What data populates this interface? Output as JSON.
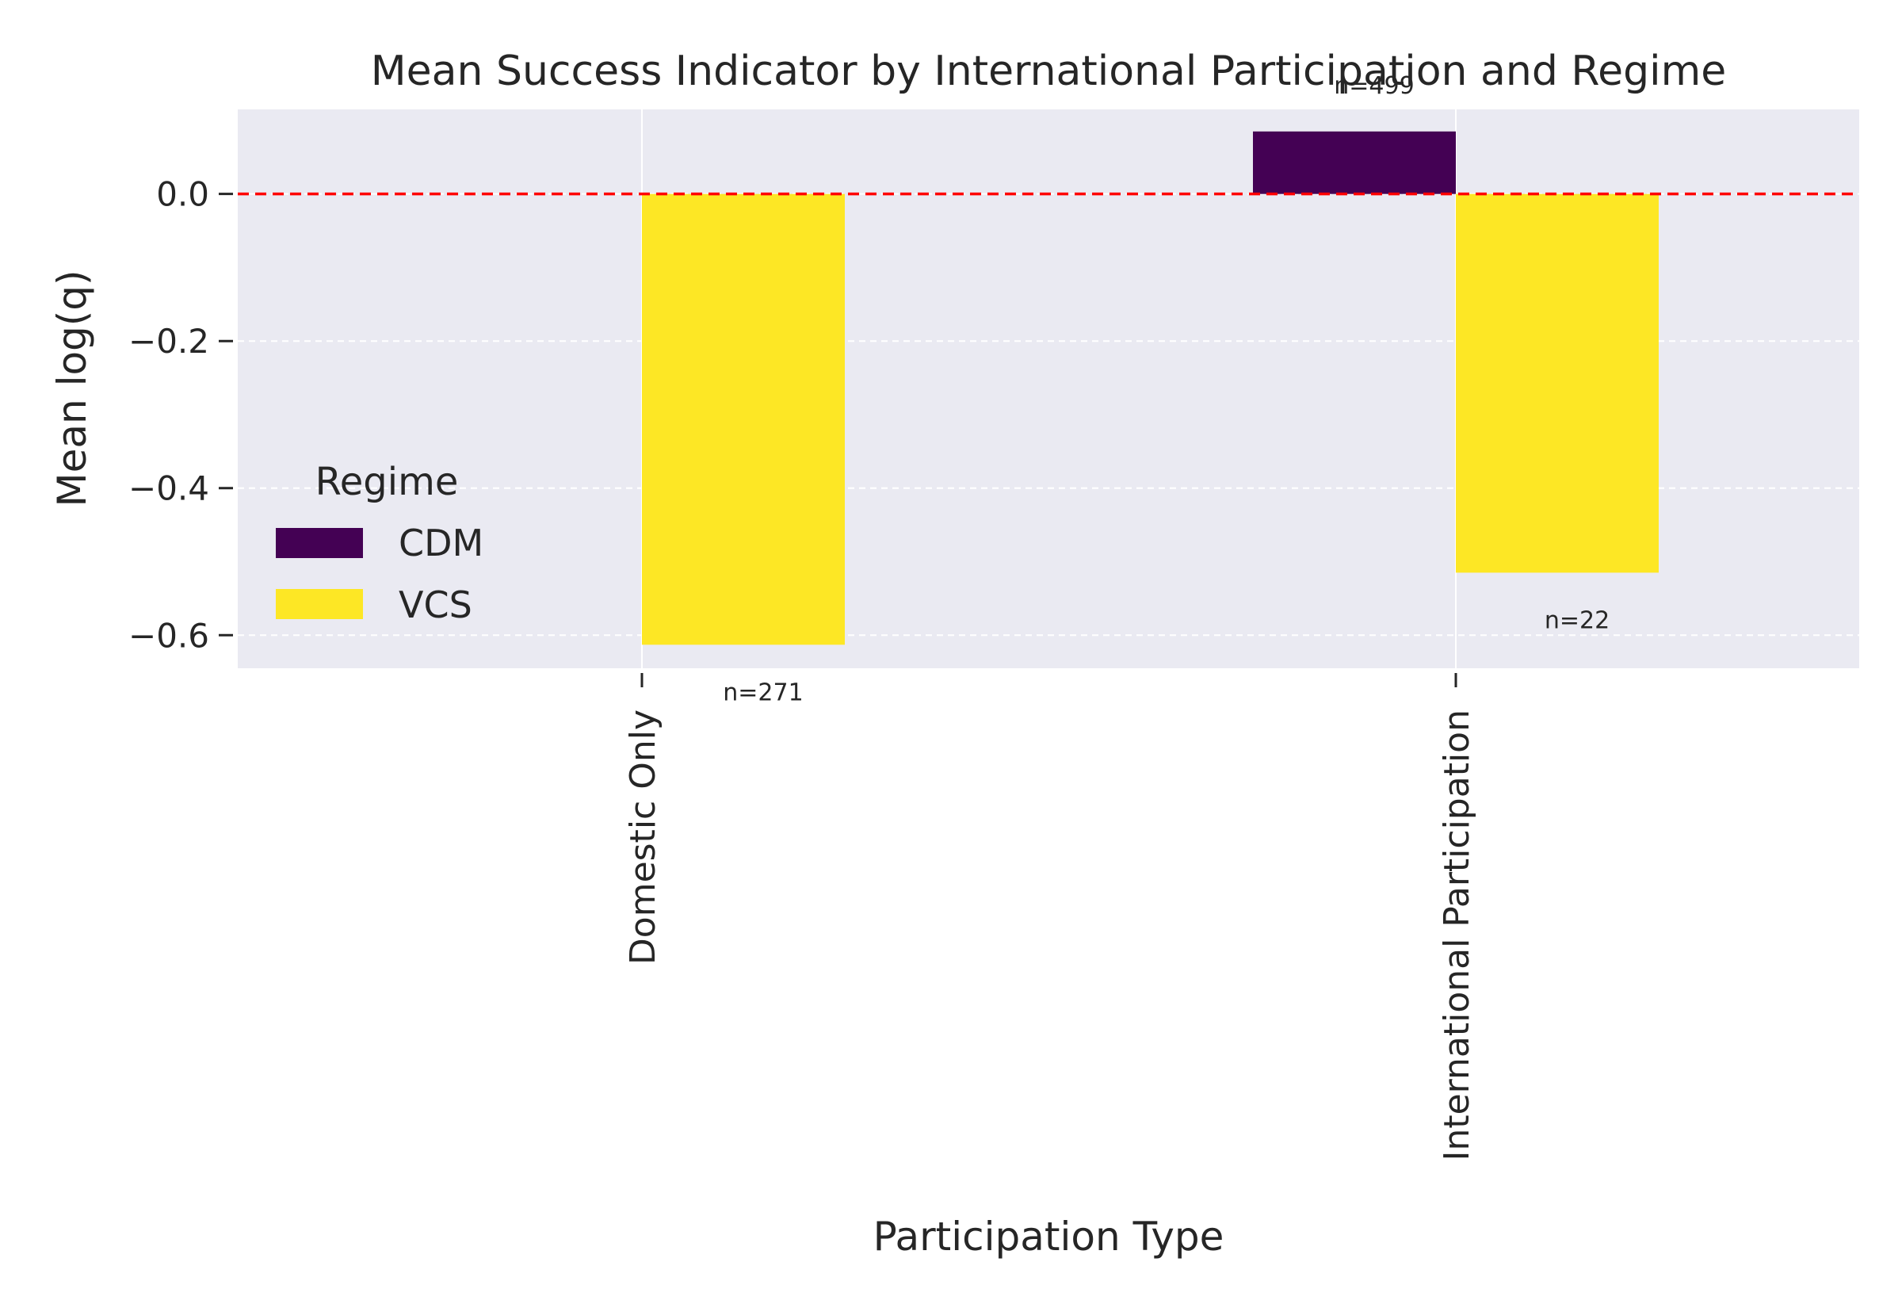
{
  "chart_data": {
    "type": "bar",
    "title": "Mean Success Indicator by International Participation and Regime",
    "xlabel": "Participation Type",
    "ylabel": "Mean log(q)",
    "categories": [
      "Domestic Only",
      "International Participation"
    ],
    "series": [
      {
        "name": "CDM",
        "color": "#440154",
        "values": [
          null,
          0.085
        ],
        "annotations": [
          "",
          "n=499"
        ]
      },
      {
        "name": "VCS",
        "color": "#fde725",
        "values": [
          -0.613,
          -0.515
        ],
        "annotations": [
          "n=271",
          "n=22"
        ]
      }
    ],
    "ylim": [
      -0.645,
      0.115
    ],
    "yticks": [
      0.0,
      -0.2,
      -0.4,
      -0.6
    ],
    "ytick_labels": [
      "0.0",
      "−0.2",
      "−0.4",
      "−0.6"
    ],
    "reference_line": {
      "y": 0.0,
      "color": "#ff0000",
      "style": "dashed"
    },
    "grid": true,
    "legend": {
      "title": "Regime",
      "placement": "center-left"
    },
    "colors": {
      "background": "#eaeaf2",
      "grid": "#ffffff",
      "text": "#262626"
    }
  }
}
